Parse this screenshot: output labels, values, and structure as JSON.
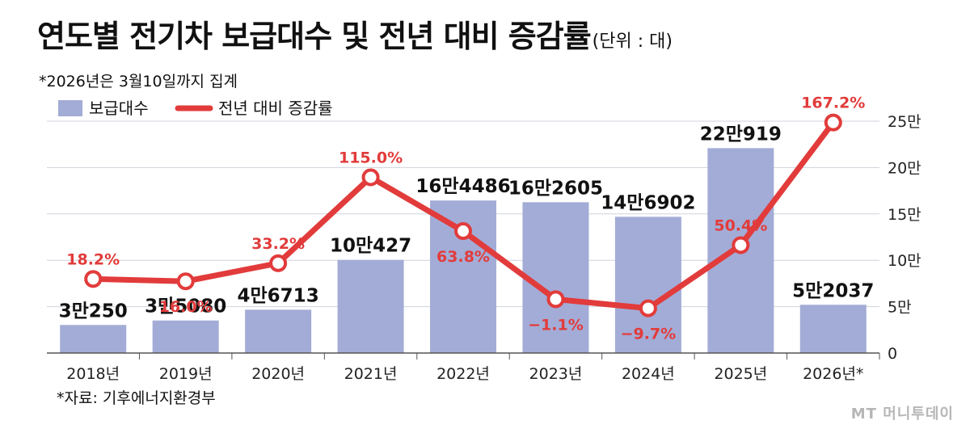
{
  "title": "연도별 전기차 보급대수 및 전년 대비 증감률",
  "unit": "(단위 : 대)",
  "subtitle": "*2026년은 3월10일까지 집계",
  "source": "*자료: 기후에너지환경부",
  "watermark": "MT 머니투데이",
  "colors": {
    "bar": "#a3acd6",
    "line": "#e23b3b",
    "grid": "#cfd3dc",
    "axis": "#555555"
  },
  "chart_data": {
    "type": "bar",
    "categories": [
      "2018년",
      "2019년",
      "2020년",
      "2021년",
      "2022년",
      "2023년",
      "2024년",
      "2025년",
      "2026년*"
    ],
    "ylim": [
      0,
      250000
    ],
    "yticks": [
      "0",
      "5만",
      "10만",
      "15만",
      "20만",
      "25만"
    ],
    "grid": true,
    "legend": {
      "placement": "top-left",
      "items": [
        "보급대수",
        "전년 대비 증감률"
      ]
    },
    "series": [
      {
        "name": "보급대수",
        "type": "bar",
        "values": [
          30250,
          35080,
          46713,
          100427,
          164486,
          162605,
          146902,
          220919,
          52037
        ],
        "labels": [
          "3만250",
          "3만5080",
          "4만6713",
          "10만427",
          "16만4486",
          "16만2605",
          "14만6902",
          "22만919",
          "5만2037"
        ]
      },
      {
        "name": "전년 대비 증감률",
        "type": "line",
        "values": [
          18.2,
          16.0,
          33.2,
          115.0,
          63.8,
          -1.1,
          -9.7,
          50.4,
          167.2
        ],
        "labels": [
          "18.2%",
          "16.0%",
          "33.2%",
          "115.0%",
          "63.8%",
          "−1.1%",
          "−9.7%",
          "50.4%",
          "167.2%"
        ]
      }
    ]
  }
}
